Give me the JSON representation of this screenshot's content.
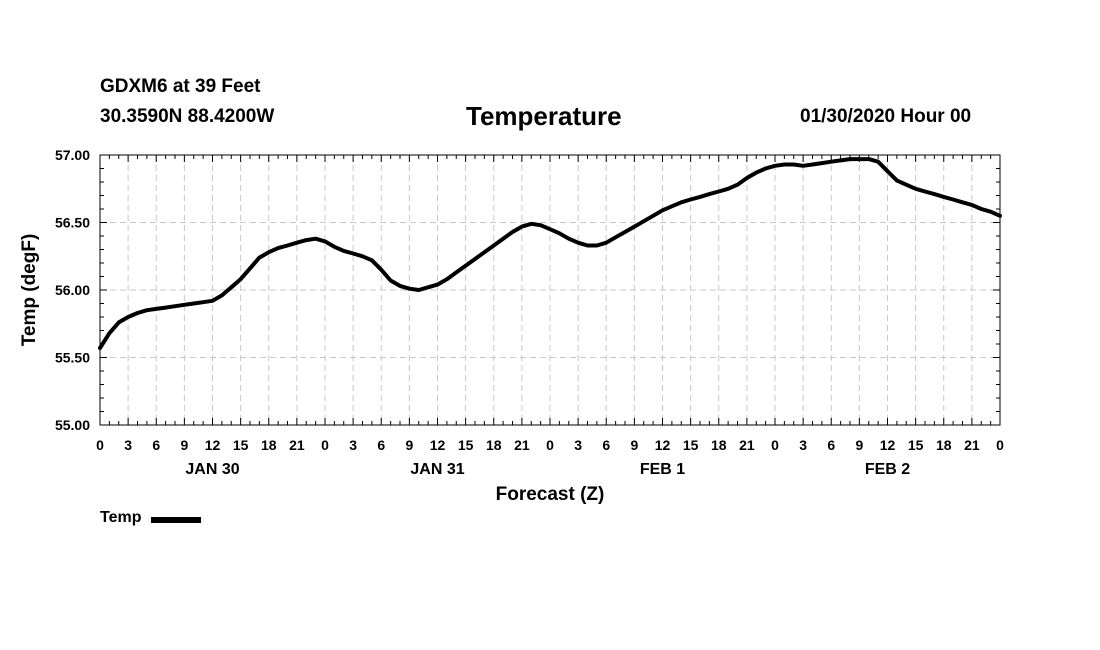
{
  "header": {
    "station": "GDXM6 at 39 Feet",
    "coords": "30.3590N 88.4200W",
    "title": "Temperature",
    "datetime": "01/30/2020 Hour 00"
  },
  "chart_data": {
    "type": "line",
    "title": "Temperature",
    "xlabel": "Forecast (Z)",
    "ylabel": "Temp (degF)",
    "xlim": [
      0,
      96
    ],
    "ylim": [
      55.0,
      57.0
    ],
    "y_ticks": [
      "55.00",
      "55.50",
      "56.00",
      "56.50",
      "57.00"
    ],
    "y_tick_values": [
      55.0,
      55.5,
      56.0,
      56.5,
      57.0
    ],
    "x_tick_labels": [
      "0",
      "3",
      "6",
      "9",
      "12",
      "15",
      "18",
      "21",
      "0",
      "3",
      "6",
      "9",
      "12",
      "15",
      "18",
      "21",
      "0",
      "3",
      "6",
      "9",
      "12",
      "15",
      "18",
      "21",
      "0",
      "3",
      "6",
      "9",
      "12",
      "15",
      "18",
      "21",
      "0"
    ],
    "day_labels": [
      {
        "label": "JAN 30",
        "hour": 12
      },
      {
        "label": "JAN 31",
        "hour": 36
      },
      {
        "label": "FEB 1",
        "hour": 60
      },
      {
        "label": "FEB 2",
        "hour": 84
      }
    ],
    "grid": true,
    "legend_position": "bottom-left",
    "series": [
      {
        "name": "Temp",
        "x": [
          0,
          1,
          2,
          3,
          4,
          5,
          6,
          7,
          8,
          9,
          10,
          11,
          12,
          13,
          14,
          15,
          16,
          17,
          18,
          19,
          20,
          21,
          22,
          23,
          24,
          25,
          26,
          27,
          28,
          29,
          30,
          31,
          32,
          33,
          34,
          35,
          36,
          37,
          38,
          39,
          40,
          41,
          42,
          43,
          44,
          45,
          46,
          47,
          48,
          49,
          50,
          51,
          52,
          53,
          54,
          55,
          56,
          57,
          58,
          59,
          60,
          61,
          62,
          63,
          64,
          65,
          66,
          67,
          68,
          69,
          70,
          71,
          72,
          73,
          74,
          75,
          76,
          77,
          78,
          79,
          80,
          81,
          82,
          83,
          84,
          85,
          86,
          87,
          88,
          89,
          90,
          91,
          92,
          93,
          94,
          95,
          96
        ],
        "values": [
          55.57,
          55.68,
          55.76,
          55.8,
          55.83,
          55.85,
          55.86,
          55.87,
          55.88,
          55.89,
          55.9,
          55.91,
          55.92,
          55.96,
          56.02,
          56.08,
          56.16,
          56.24,
          56.28,
          56.31,
          56.33,
          56.35,
          56.37,
          56.38,
          56.36,
          56.32,
          56.29,
          56.27,
          56.25,
          56.22,
          56.15,
          56.07,
          56.03,
          56.01,
          56.0,
          56.02,
          56.04,
          56.08,
          56.13,
          56.18,
          56.23,
          56.28,
          56.33,
          56.38,
          56.43,
          56.47,
          56.49,
          56.48,
          56.45,
          56.42,
          56.38,
          56.35,
          56.33,
          56.33,
          56.35,
          56.39,
          56.43,
          56.47,
          56.51,
          56.55,
          56.59,
          56.62,
          56.65,
          56.67,
          56.69,
          56.71,
          56.73,
          56.75,
          56.78,
          56.83,
          56.87,
          56.9,
          56.92,
          56.93,
          56.93,
          56.92,
          56.93,
          56.94,
          56.95,
          56.96,
          56.97,
          56.97,
          56.97,
          56.95,
          56.88,
          56.81,
          56.78,
          56.75,
          56.73,
          56.71,
          56.69,
          56.67,
          56.65,
          56.63,
          56.6,
          56.58,
          56.55
        ]
      }
    ]
  }
}
